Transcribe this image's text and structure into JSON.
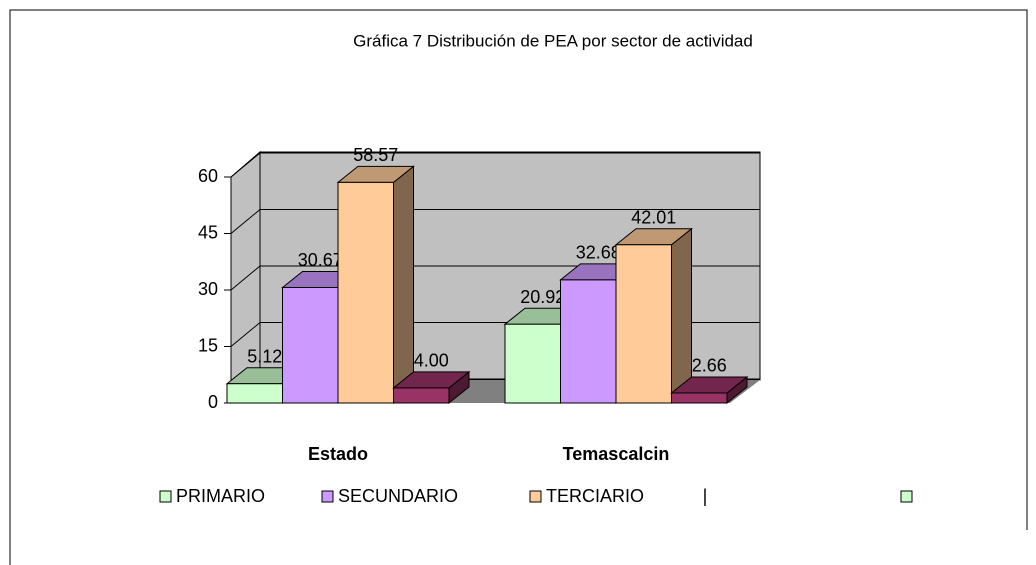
{
  "chart_data": {
    "type": "bar3d",
    "title": "Gráfica 7  Distribución de PEA por sector de actividad",
    "categories": [
      "Estado",
      "Temascalcin"
    ],
    "series": [
      {
        "name": "PRIMARIO",
        "color": "#ccffcc",
        "values": [
          5.12,
          20.92
        ],
        "value_labels": [
          "5.12",
          "20.92"
        ]
      },
      {
        "name": "SECUNDARIO",
        "color": "#cc99ff",
        "values": [
          30.67,
          32.68
        ],
        "value_labels": [
          "30.67",
          "32.68"
        ]
      },
      {
        "name": "TERCIARIO",
        "color": "#ffcc99",
        "values": [
          58.57,
          42.01
        ],
        "value_labels": [
          "58.57",
          "42.01"
        ]
      },
      {
        "color": "#993366",
        "values": [
          4.0,
          2.66
        ],
        "value_labels": [
          "4.00",
          "2.66"
        ]
      }
    ],
    "ylim": [
      0,
      60
    ],
    "yticks": [
      0,
      15,
      30,
      45,
      60
    ],
    "grid": true
  }
}
